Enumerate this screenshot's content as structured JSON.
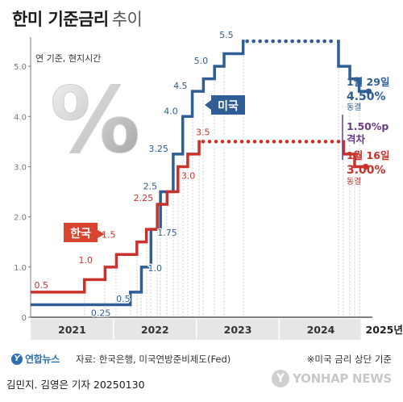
{
  "header": {
    "title": "한미 기준금리",
    "subtitle": "추이"
  },
  "unit_note": "연 기준, 현지시간",
  "decor": {
    "percent_glyph": "%"
  },
  "footer": {
    "logo_text": "연합뉴스",
    "source": "자료: 한국은행, 미국연방준비제도(Fed)",
    "footnote": "※미국 금리 상단 기준",
    "credit": "김민지. 김영은 기자  20250130",
    "watermark": "YONHAP NEWS"
  },
  "colors": {
    "us": "#2e5e95",
    "korea": "#c9322b",
    "gap": "#6a3a84",
    "korea_box": "#d9442e"
  },
  "chart_data": {
    "type": "line",
    "subtype": "step",
    "ylim": [
      0,
      5.5
    ],
    "yticks": [
      0,
      1.0,
      2.0,
      3.0,
      4.0,
      5.0
    ],
    "ytick_labels": [
      "0",
      "1.0",
      "2.0",
      "3.0",
      "4.0",
      "5.0"
    ],
    "x_categories": [
      "2021",
      "2022",
      "2023",
      "2024",
      "2025년"
    ],
    "x_range": [
      "2021-01-01",
      "2025-01-31"
    ],
    "grid": "vertical dotted at rate change dates",
    "series": [
      {
        "name": "미국",
        "steps": [
          {
            "date": "2021-01-01",
            "value": 0.25
          },
          {
            "date": "2022-03-16",
            "value": 0.5
          },
          {
            "date": "2022-05-04",
            "value": 1.0
          },
          {
            "date": "2022-06-15",
            "value": 1.75
          },
          {
            "date": "2022-07-27",
            "value": 2.5
          },
          {
            "date": "2022-09-21",
            "value": 3.25
          },
          {
            "date": "2022-11-02",
            "value": 4.0
          },
          {
            "date": "2022-12-14",
            "value": 4.5
          },
          {
            "date": "2023-02-01",
            "value": 4.75
          },
          {
            "date": "2023-03-22",
            "value": 5.0
          },
          {
            "date": "2023-05-03",
            "value": 5.25
          },
          {
            "date": "2023-07-26",
            "value": 5.5
          },
          {
            "date": "2024-09-18",
            "value": 5.0
          },
          {
            "date": "2024-11-07",
            "value": 4.75
          },
          {
            "date": "2024-12-18",
            "value": 4.5
          }
        ],
        "end_date": "2025-01-29",
        "labels": [
          {
            "text": "0.25",
            "date": "2021-12-20",
            "value": 0.25,
            "anchor": "end",
            "dy": 14
          },
          {
            "text": "0.5",
            "date": "2022-03-16",
            "value": 0.5,
            "anchor": "end",
            "dy": 12
          },
          {
            "text": "1.0",
            "date": "2022-05-04",
            "value": 1.0,
            "anchor": "start",
            "dx": 8,
            "dy": 5
          },
          {
            "text": "1.75",
            "date": "2022-06-15",
            "value": 1.75,
            "anchor": "start",
            "dx": 8,
            "dy": 8
          },
          {
            "text": "2.5",
            "date": "2022-07-27",
            "value": 2.5,
            "anchor": "end",
            "dx": -4,
            "dy": -3
          },
          {
            "text": "3.25",
            "date": "2022-09-21",
            "value": 3.25,
            "anchor": "end",
            "dx": -6,
            "dy": -3
          },
          {
            "text": "4.0",
            "date": "2022-11-02",
            "value": 4.0,
            "anchor": "end",
            "dx": -6,
            "dy": -3
          },
          {
            "text": "4.5",
            "date": "2022-12-14",
            "value": 4.5,
            "anchor": "end",
            "dx": -6,
            "dy": -3
          },
          {
            "text": "5.0",
            "date": "2023-03-22",
            "value": 5.0,
            "anchor": "end",
            "dx": -8,
            "dy": -3
          },
          {
            "text": "5.5",
            "date": "2023-07-26",
            "value": 5.5,
            "anchor": "end",
            "dx": -12,
            "dy": -4
          }
        ],
        "tag": "미국",
        "end_label": {
          "date": "1월 29일",
          "value": "4.50%",
          "status": "동결"
        }
      },
      {
        "name": "한국",
        "steps": [
          {
            "date": "2021-01-01",
            "value": 0.5
          },
          {
            "date": "2021-08-26",
            "value": 0.75
          },
          {
            "date": "2021-11-25",
            "value": 1.0
          },
          {
            "date": "2022-01-14",
            "value": 1.25
          },
          {
            "date": "2022-04-14",
            "value": 1.5
          },
          {
            "date": "2022-05-26",
            "value": 1.75
          },
          {
            "date": "2022-07-13",
            "value": 2.25
          },
          {
            "date": "2022-08-25",
            "value": 2.5
          },
          {
            "date": "2022-10-12",
            "value": 3.0
          },
          {
            "date": "2022-11-24",
            "value": 3.25
          },
          {
            "date": "2023-01-13",
            "value": 3.5
          },
          {
            "date": "2024-10-11",
            "value": 3.25
          },
          {
            "date": "2024-11-28",
            "value": 3.0
          }
        ],
        "end_date": "2025-01-16",
        "labels": [
          {
            "text": "0.5",
            "date": "2021-01-10",
            "value": 0.5,
            "anchor": "start",
            "dx": 2,
            "dy": -5
          },
          {
            "text": "1.0",
            "date": "2021-09-25",
            "value": 1.0,
            "anchor": "middle",
            "dx": -7,
            "dy": -5
          },
          {
            "text": "1.5",
            "date": "2022-02-01",
            "value": 1.5,
            "anchor": "end",
            "dx": -6,
            "dy": -5
          },
          {
            "text": "2.25",
            "date": "2022-07-13",
            "value": 2.25,
            "anchor": "end",
            "dx": -5,
            "dy": -4
          },
          {
            "text": "3.0",
            "date": "2022-10-12",
            "value": 3.0,
            "anchor": "start",
            "dx": 4,
            "dy": 15
          },
          {
            "text": "3.5",
            "date": "2023-01-13",
            "value": 3.5,
            "anchor": "start",
            "dx": -4,
            "dy": -8
          }
        ],
        "tag": "한국",
        "end_label": {
          "date": "1월 16일",
          "value": "3.00%",
          "status": "동결"
        }
      }
    ],
    "gap_annotation": {
      "value": "1.50%p",
      "label": "격차"
    }
  }
}
